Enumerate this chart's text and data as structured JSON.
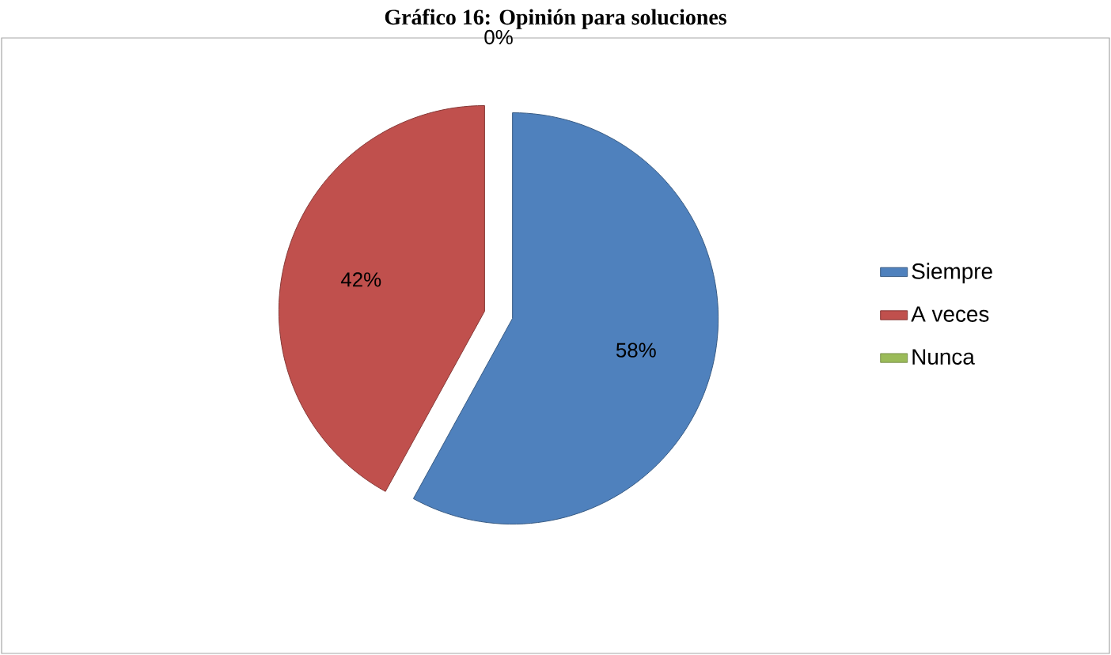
{
  "chart_data": {
    "type": "pie",
    "title": "Gráfico  16: Opinión para soluciones",
    "categories": [
      "Siempre",
      "A veces",
      "Nunca"
    ],
    "values": [
      58,
      42,
      0
    ],
    "colors": [
      "#4f81bd",
      "#c0504d",
      "#9bbb59"
    ],
    "value_labels": [
      "58%",
      "42%",
      "0%"
    ],
    "legend": "right"
  }
}
